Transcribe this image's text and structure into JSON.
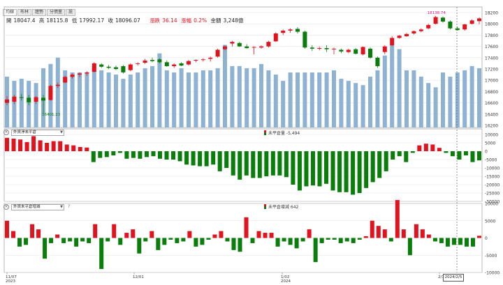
{
  "tabs": [
    {
      "label": "均線",
      "active": true
    },
    {
      "label": "布林",
      "active": false
    },
    {
      "label": "趨勢",
      "active": false
    },
    {
      "label": "分價量",
      "active": false
    },
    {
      "label": "設",
      "active": false
    }
  ],
  "quote": {
    "open_label": "開",
    "open": "18047.4",
    "high_label": "高",
    "high": "18115.8",
    "low_label": "低",
    "low": "17992.17",
    "close_label": "收",
    "close": "18096.07",
    "change_label": "漲跌",
    "change": "36.14",
    "pct_label": "漲幅",
    "pct": "0.2%",
    "amount_label": "金額",
    "amount": "3,248億"
  },
  "price_axis": {
    "ticks": [
      "18200",
      "18000",
      "17800",
      "17600",
      "17400",
      "17200",
      "17000",
      "16800",
      "16600",
      "16400",
      "16200"
    ]
  },
  "annotations": {
    "high_marker": "18138.74",
    "low_marker": "16401.23"
  },
  "indicator1": {
    "select": "外資淨未平倉",
    "value_label": "未平倉量 -5,494",
    "ticks": [
      "10000",
      "5000",
      "0",
      "-5000",
      "-10000",
      "-15000",
      "-20000",
      "-25000",
      "-30000"
    ]
  },
  "indicator2": {
    "select": "外資未平倉增減",
    "help": "?",
    "value_label": "未平倉增減 642",
    "ticks": [
      "10000",
      "5000",
      "0",
      "-5000",
      "-10000"
    ]
  },
  "date_axis": {
    "labels": [
      "11/07\n2023",
      "12/01",
      "1/02\n2024",
      "2/1"
    ]
  },
  "cursor_date": "2024/2/5",
  "colors": {
    "up": "#e0141e",
    "down": "#0a7e0a",
    "volume": "#8eb2d1",
    "grid": "#e6e6e6",
    "marker": "#e0147a"
  },
  "chart_data": [
    {
      "type": "candlestick",
      "title": "",
      "ylim": [
        16200,
        18200
      ],
      "candles": [
        {
          "o": 16600,
          "h": 16720,
          "l": 16560,
          "c": 16660
        },
        {
          "o": 16620,
          "h": 16740,
          "l": 16580,
          "c": 16710
        },
        {
          "o": 16700,
          "h": 16760,
          "l": 16640,
          "c": 16690
        },
        {
          "o": 16690,
          "h": 16740,
          "l": 16560,
          "c": 16610
        },
        {
          "o": 16620,
          "h": 16720,
          "l": 16580,
          "c": 16700
        },
        {
          "o": 16690,
          "h": 16740,
          "l": 16400,
          "c": 16640
        },
        {
          "o": 16650,
          "h": 16920,
          "l": 16640,
          "c": 16900
        },
        {
          "o": 16900,
          "h": 16960,
          "l": 16860,
          "c": 16920
        },
        {
          "o": 16960,
          "h": 17080,
          "l": 16950,
          "c": 17060
        },
        {
          "o": 17060,
          "h": 17120,
          "l": 17030,
          "c": 17100
        },
        {
          "o": 17100,
          "h": 17140,
          "l": 17060,
          "c": 17120
        },
        {
          "o": 17120,
          "h": 17160,
          "l": 17080,
          "c": 17140
        },
        {
          "o": 17150,
          "h": 17320,
          "l": 17140,
          "c": 17300
        },
        {
          "o": 17280,
          "h": 17300,
          "l": 17220,
          "c": 17240
        },
        {
          "o": 17240,
          "h": 17270,
          "l": 17200,
          "c": 17220
        },
        {
          "o": 17230,
          "h": 17260,
          "l": 17180,
          "c": 17200
        },
        {
          "o": 17250,
          "h": 17270,
          "l": 17120,
          "c": 17140
        },
        {
          "o": 17180,
          "h": 17300,
          "l": 17160,
          "c": 17280
        },
        {
          "o": 17290,
          "h": 17320,
          "l": 17260,
          "c": 17300
        },
        {
          "o": 17310,
          "h": 17380,
          "l": 17290,
          "c": 17350
        },
        {
          "o": 17360,
          "h": 17400,
          "l": 17320,
          "c": 17340
        },
        {
          "o": 17370,
          "h": 17390,
          "l": 17300,
          "c": 17320
        },
        {
          "o": 17320,
          "h": 17350,
          "l": 17240,
          "c": 17250
        },
        {
          "o": 17250,
          "h": 17300,
          "l": 17220,
          "c": 17280
        },
        {
          "o": 17300,
          "h": 17320,
          "l": 17250,
          "c": 17260
        },
        {
          "o": 17280,
          "h": 17360,
          "l": 17260,
          "c": 17340
        },
        {
          "o": 17350,
          "h": 17370,
          "l": 17320,
          "c": 17360
        },
        {
          "o": 17360,
          "h": 17390,
          "l": 17330,
          "c": 17370
        },
        {
          "o": 17380,
          "h": 17420,
          "l": 17330,
          "c": 17400
        },
        {
          "o": 17420,
          "h": 17560,
          "l": 17400,
          "c": 17540
        },
        {
          "o": 17550,
          "h": 17620,
          "l": 17530,
          "c": 17600
        },
        {
          "o": 17650,
          "h": 17700,
          "l": 17600,
          "c": 17680
        },
        {
          "o": 17660,
          "h": 17680,
          "l": 17590,
          "c": 17600
        },
        {
          "o": 17600,
          "h": 17640,
          "l": 17560,
          "c": 17570
        },
        {
          "o": 17580,
          "h": 17600,
          "l": 17460,
          "c": 17590
        },
        {
          "o": 17580,
          "h": 17620,
          "l": 17560,
          "c": 17600
        },
        {
          "o": 17600,
          "h": 17700,
          "l": 17580,
          "c": 17680
        },
        {
          "o": 17690,
          "h": 17850,
          "l": 17680,
          "c": 17830
        },
        {
          "o": 17840,
          "h": 17900,
          "l": 17800,
          "c": 17880
        },
        {
          "o": 17880,
          "h": 17920,
          "l": 17840,
          "c": 17900
        },
        {
          "o": 17910,
          "h": 17940,
          "l": 17830,
          "c": 17860
        },
        {
          "o": 17860,
          "h": 17880,
          "l": 17560,
          "c": 17580
        },
        {
          "o": 17580,
          "h": 17620,
          "l": 17520,
          "c": 17560
        },
        {
          "o": 17560,
          "h": 17600,
          "l": 17530,
          "c": 17570
        },
        {
          "o": 17570,
          "h": 17620,
          "l": 17500,
          "c": 17550
        },
        {
          "o": 17550,
          "h": 17580,
          "l": 17460,
          "c": 17560
        },
        {
          "o": 17540,
          "h": 17560,
          "l": 17480,
          "c": 17510
        },
        {
          "o": 17500,
          "h": 17560,
          "l": 17480,
          "c": 17540
        },
        {
          "o": 17550,
          "h": 17570,
          "l": 17460,
          "c": 17470
        },
        {
          "o": 17460,
          "h": 17600,
          "l": 17440,
          "c": 17590
        },
        {
          "o": 17560,
          "h": 17580,
          "l": 17380,
          "c": 17400
        },
        {
          "o": 17400,
          "h": 17420,
          "l": 17220,
          "c": 17250
        },
        {
          "o": 17500,
          "h": 17620,
          "l": 17460,
          "c": 17600
        },
        {
          "o": 17620,
          "h": 17780,
          "l": 17600,
          "c": 17750
        },
        {
          "o": 17750,
          "h": 17800,
          "l": 17740,
          "c": 17790
        },
        {
          "o": 17780,
          "h": 17840,
          "l": 17770,
          "c": 17820
        },
        {
          "o": 17830,
          "h": 17880,
          "l": 17810,
          "c": 17870
        },
        {
          "o": 17870,
          "h": 17920,
          "l": 17850,
          "c": 17900
        },
        {
          "o": 17920,
          "h": 18000,
          "l": 17900,
          "c": 17980
        },
        {
          "o": 18000,
          "h": 18140,
          "l": 17990,
          "c": 18120
        },
        {
          "o": 18110,
          "h": 18130,
          "l": 18020,
          "c": 18040
        },
        {
          "o": 18040,
          "h": 18060,
          "l": 17900,
          "c": 17920
        },
        {
          "o": 17920,
          "h": 17950,
          "l": 17880,
          "c": 17890
        },
        {
          "o": 17900,
          "h": 18000,
          "l": 17880,
          "c": 17990
        },
        {
          "o": 18000,
          "h": 18080,
          "l": 17990,
          "c": 18060
        },
        {
          "o": 18047.4,
          "h": 18115.8,
          "l": 17992.17,
          "c": 18096.07
        }
      ],
      "volume_ratio": [
        0.48,
        0.44,
        0.46,
        0.44,
        0.42,
        0.56,
        0.6,
        0.66,
        0.54,
        0.52,
        0.52,
        0.52,
        0.6,
        0.54,
        0.52,
        0.5,
        0.46,
        0.5,
        0.52,
        0.56,
        0.58,
        0.7,
        0.54,
        0.52,
        0.56,
        0.52,
        0.52,
        0.54,
        0.54,
        0.56,
        0.78,
        0.58,
        0.58,
        0.56,
        0.56,
        0.6,
        0.54,
        0.5,
        0.44,
        0.52,
        0.52,
        0.52,
        0.52,
        0.52,
        0.52,
        0.54,
        0.46,
        0.44,
        0.42,
        0.4,
        0.48,
        0.54,
        0.68,
        0.78,
        0.74,
        0.54,
        0.54,
        0.48,
        0.42,
        0.38,
        0.52,
        0.48,
        0.52,
        0.54,
        0.58,
        0.56
      ]
    },
    {
      "type": "bar",
      "title": "",
      "ylim": [
        -30000,
        10000
      ],
      "values": [
        8000,
        7500,
        7000,
        5500,
        9000,
        6500,
        5000,
        6000,
        6000,
        4000,
        3500,
        2500,
        2200,
        -6500,
        -4000,
        -3500,
        -2500,
        -1000,
        -4500,
        -4000,
        -4500,
        -3500,
        -3000,
        -4500,
        -5000,
        -5000,
        -6000,
        -8000,
        -8500,
        -9000,
        -9000,
        -8000,
        -12000,
        -10000,
        -14500,
        -17000,
        -14500,
        -16000,
        -16000,
        -15000,
        -14500,
        -14500,
        -15500,
        -20000,
        -23500,
        -21000,
        -20500,
        -21000,
        -19500,
        -23500,
        -24500,
        -24500,
        -26000,
        -25000,
        -22000,
        -18500,
        -16000,
        -12000,
        -5000,
        -3000,
        -6500,
        -1000,
        3500,
        4500,
        4000,
        2000,
        -1000,
        -3000,
        -5000,
        -2500,
        -6500,
        -5500
      ]
    },
    {
      "type": "bar",
      "title": "",
      "ylim": [
        -10000,
        10000
      ],
      "values": [
        5000,
        2000,
        -2500,
        -2000,
        4000,
        2500,
        -6000,
        -1500,
        1000,
        -1500,
        -1000,
        -2500,
        -1000,
        -1500,
        4000,
        -9000,
        -1000,
        4000,
        -2000,
        1500,
        2500,
        -4500,
        -1000,
        2000,
        -3500,
        -2000,
        -500,
        -1500,
        -1000,
        2000,
        -2500,
        -2000,
        -500,
        1000,
        2000,
        -1000,
        -3500,
        -4000,
        6000,
        -1500,
        2000,
        1500,
        1500,
        -2500,
        -1000,
        -2000,
        -3000,
        -1000,
        2500,
        -7000,
        -1500,
        -500,
        -500,
        -1500,
        -1000,
        -1500,
        -500,
        500,
        5000,
        3500,
        2500,
        -1000,
        11000,
        2500,
        -5000,
        4000,
        2500,
        1000,
        -1000,
        -1500,
        -2500,
        -2000,
        -2000,
        -2500,
        -2500,
        642
      ]
    }
  ]
}
